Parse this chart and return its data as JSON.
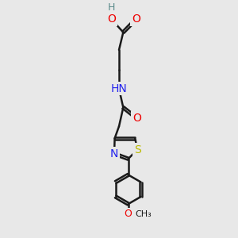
{
  "bg_color": "#e8e8e8",
  "bond_color": "#1a1a1a",
  "bond_width": 1.8,
  "atom_colors": {
    "C": "#1a1a1a",
    "H": "#5a8a8a",
    "O": "#ee0000",
    "N": "#2222ee",
    "S": "#bbbb00"
  },
  "font_size": 10,
  "figsize": [
    3.0,
    3.0
  ],
  "dpi": 100,
  "xlim": [
    3.5,
    6.5
  ],
  "ylim": [
    0.2,
    10.2
  ]
}
